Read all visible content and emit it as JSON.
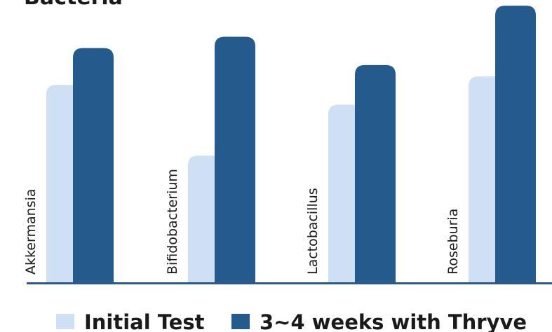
{
  "title": "Bacteria",
  "chart_data": {
    "type": "bar",
    "title": "Bacteria",
    "categories": [
      "Akkermansia",
      "Bifidobacterium",
      "Lactobacillus",
      "Roseburia"
    ],
    "series": [
      {
        "name": "Initial Test",
        "values": [
          70,
          45,
          63,
          73
        ],
        "color": "#cfe0f4"
      },
      {
        "name": "3~4 weeks with Thryve",
        "values": [
          83,
          87,
          77,
          98
        ],
        "color": "#245b8c"
      }
    ],
    "xlabel": "",
    "ylabel": "",
    "ylim": [
      0,
      100
    ],
    "grid": false,
    "legend_position": "bottom"
  },
  "colors": {
    "text": "#1a1a1a",
    "axis": "#2d5a85",
    "initial": "#cfe0f4",
    "after": "#245b8c"
  }
}
